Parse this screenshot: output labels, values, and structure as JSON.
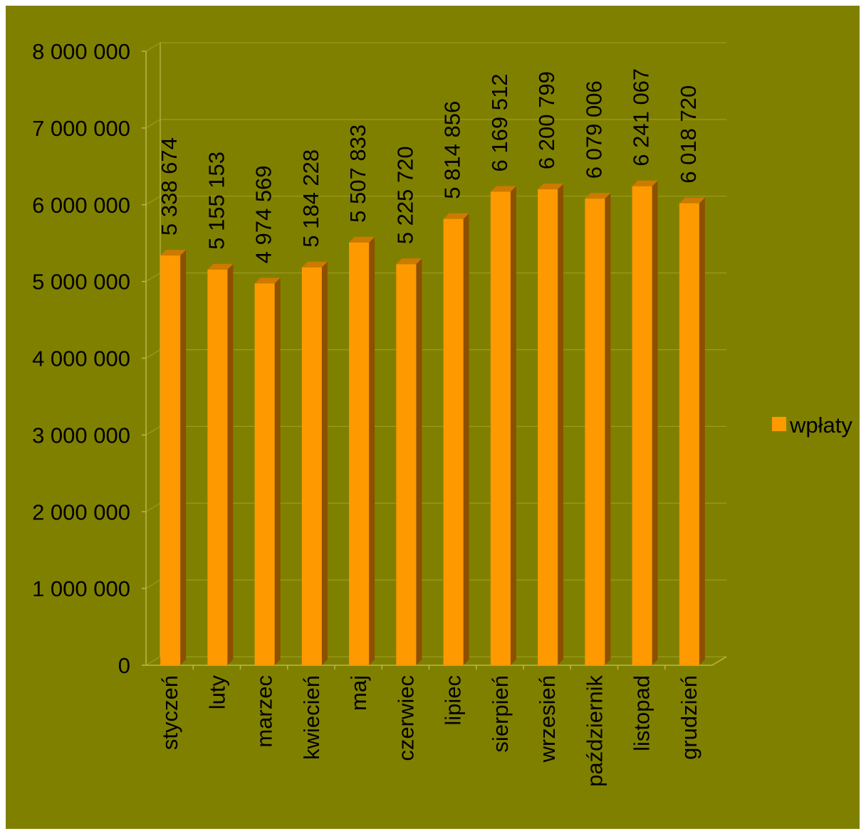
{
  "chart_data": {
    "type": "bar",
    "categories": [
      "styczeń",
      "luty",
      "marzec",
      "kwiecień",
      "maj",
      "czerwiec",
      "lipiec",
      "sierpień",
      "wrzesień",
      "październik",
      "listopad",
      "grudzień"
    ],
    "series": [
      {
        "name": "wpłaty",
        "values": [
          5338674,
          5155153,
          4974569,
          5184228,
          5507833,
          5225720,
          5814856,
          6169512,
          6200799,
          6079006,
          6241067,
          6018720
        ]
      }
    ],
    "data_labels": [
      "5 338 674",
      "5 155 153",
      "4 974 569",
      "5 184 228",
      "5 507 833",
      "5 225 720",
      "5 814 856",
      "6 169 512",
      "6 200 799",
      "6 079 006",
      "6 241 067",
      "6 018 720"
    ],
    "y_ticks": [
      0,
      1000000,
      2000000,
      3000000,
      4000000,
      5000000,
      6000000,
      7000000,
      8000000
    ],
    "y_tick_labels": [
      "0",
      "1 000 000",
      "2 000 000",
      "3 000 000",
      "4 000 000",
      "5 000 000",
      "6 000 000",
      "7 000 000",
      "8 000 000"
    ],
    "ylim": [
      0,
      8000000
    ],
    "grid": true,
    "legend_position": "right",
    "style_3d": true,
    "colors": {
      "background": "#808000",
      "bar_front": "#ff9900",
      "bar_side": "#8c5000",
      "bar_top": "#cc7a00",
      "gridline": "#9a9a22",
      "axis": "#b8b84a"
    }
  }
}
